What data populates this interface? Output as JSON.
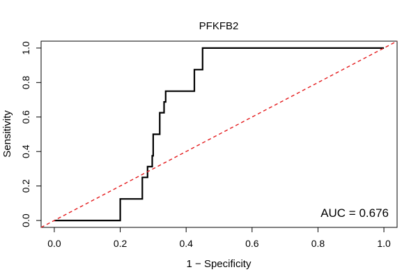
{
  "chart_data": {
    "type": "line",
    "title": "PFKFB2",
    "xlabel": "1 − Specificity",
    "ylabel": "Sensitivity",
    "xlim": [
      -0.04,
      1.04
    ],
    "ylim": [
      -0.04,
      1.04
    ],
    "x_ticks": [
      0.0,
      0.2,
      0.4,
      0.6,
      0.8,
      1.0
    ],
    "x_tick_labels": [
      "0.0",
      "0.2",
      "0.4",
      "0.6",
      "0.8",
      "1.0"
    ],
    "y_ticks": [
      0.0,
      0.2,
      0.4,
      0.6,
      0.8,
      1.0
    ],
    "y_tick_labels": [
      "0.0",
      "0.2",
      "0.4",
      "0.6",
      "0.8",
      "1.0"
    ],
    "grid": false,
    "legend": "none",
    "annotation": "AUC = 0.676",
    "series": [
      {
        "style": "solid",
        "color": "#000000",
        "x": [
          0.0,
          0.2,
          0.2,
          0.267,
          0.267,
          0.283,
          0.283,
          0.297,
          0.297,
          0.3,
          0.3,
          0.32,
          0.32,
          0.333,
          0.333,
          0.338,
          0.338,
          0.425,
          0.425,
          0.45,
          0.45,
          1.0
        ],
        "y": [
          0.0,
          0.0,
          0.125,
          0.125,
          0.25,
          0.25,
          0.3125,
          0.3125,
          0.375,
          0.375,
          0.5,
          0.5,
          0.625,
          0.625,
          0.6875,
          0.6875,
          0.75,
          0.75,
          0.875,
          0.875,
          1.0,
          1.0
        ]
      },
      {
        "style": "dashed",
        "color": "#e41a1c",
        "x": [
          -0.04,
          1.04
        ],
        "y": [
          -0.04,
          1.04
        ]
      }
    ]
  }
}
